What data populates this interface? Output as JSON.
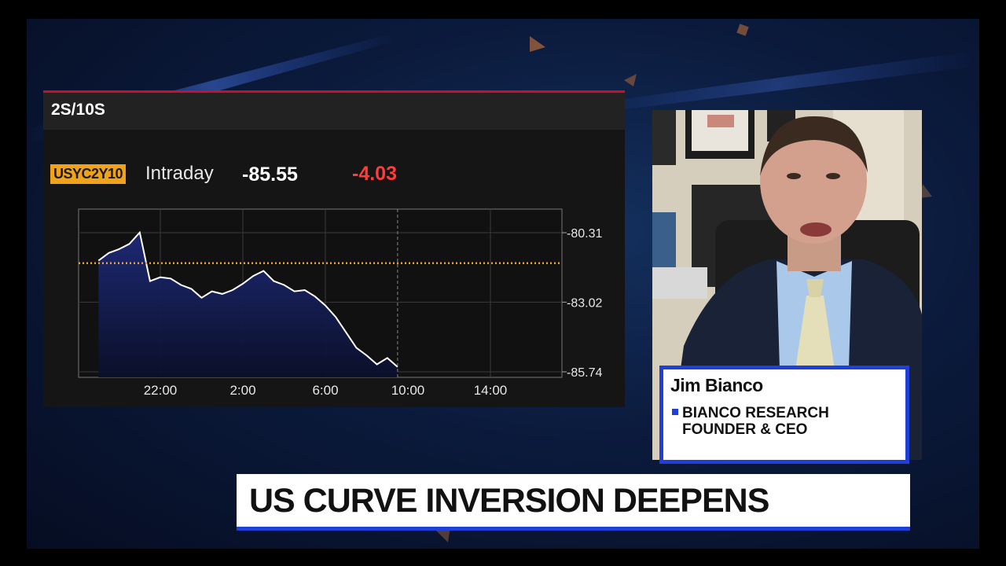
{
  "chart_panel": {
    "title": "2S/10S",
    "ticker": "USYC2Y10",
    "period": "Intraday",
    "last_value": "-85.55",
    "change": "-4.03"
  },
  "chart_data": {
    "type": "line",
    "x_ticks": [
      "22:00",
      "2:00",
      "6:00",
      "10:00",
      "14:00"
    ],
    "y_ticks": [
      "-80.31",
      "-83.02",
      "-85.74"
    ],
    "ylim": [
      -85.74,
      -80.31
    ],
    "reference_line": -81.5,
    "x": [
      0,
      0.5,
      1,
      1.5,
      2,
      2.5,
      3,
      3.5,
      4,
      4.5,
      5,
      5.5,
      6,
      6.5,
      7,
      7.5,
      8,
      8.5,
      9,
      9.5,
      10,
      10.5,
      11,
      11.5,
      12,
      12.5,
      13,
      13.5,
      14,
      14.5
    ],
    "y": [
      -81.4,
      -81.1,
      -80.95,
      -80.75,
      -80.3,
      -82.2,
      -82.05,
      -82.1,
      -82.35,
      -82.5,
      -82.85,
      -82.6,
      -82.7,
      -82.55,
      -82.3,
      -82.0,
      -81.8,
      -82.2,
      -82.35,
      -82.6,
      -82.55,
      -82.8,
      -83.15,
      -83.6,
      -84.2,
      -84.8,
      -85.1,
      -85.45,
      -85.2,
      -85.55
    ],
    "line_color": "#ffffff",
    "fill_color": "#1e2a78",
    "reference_color": "#f0a31a"
  },
  "guest": {
    "name": "Jim Bianco",
    "title_line1": "BIANCO RESEARCH",
    "title_line2": "FOUNDER & CEO"
  },
  "headline": "US CURVE INVERSION DEEPENS",
  "colors": {
    "accent_blue": "#1f3fd6",
    "negative_red": "#ff3b3b",
    "ticker_orange": "#f0a31a",
    "panel_border_red": "#c8102e"
  }
}
